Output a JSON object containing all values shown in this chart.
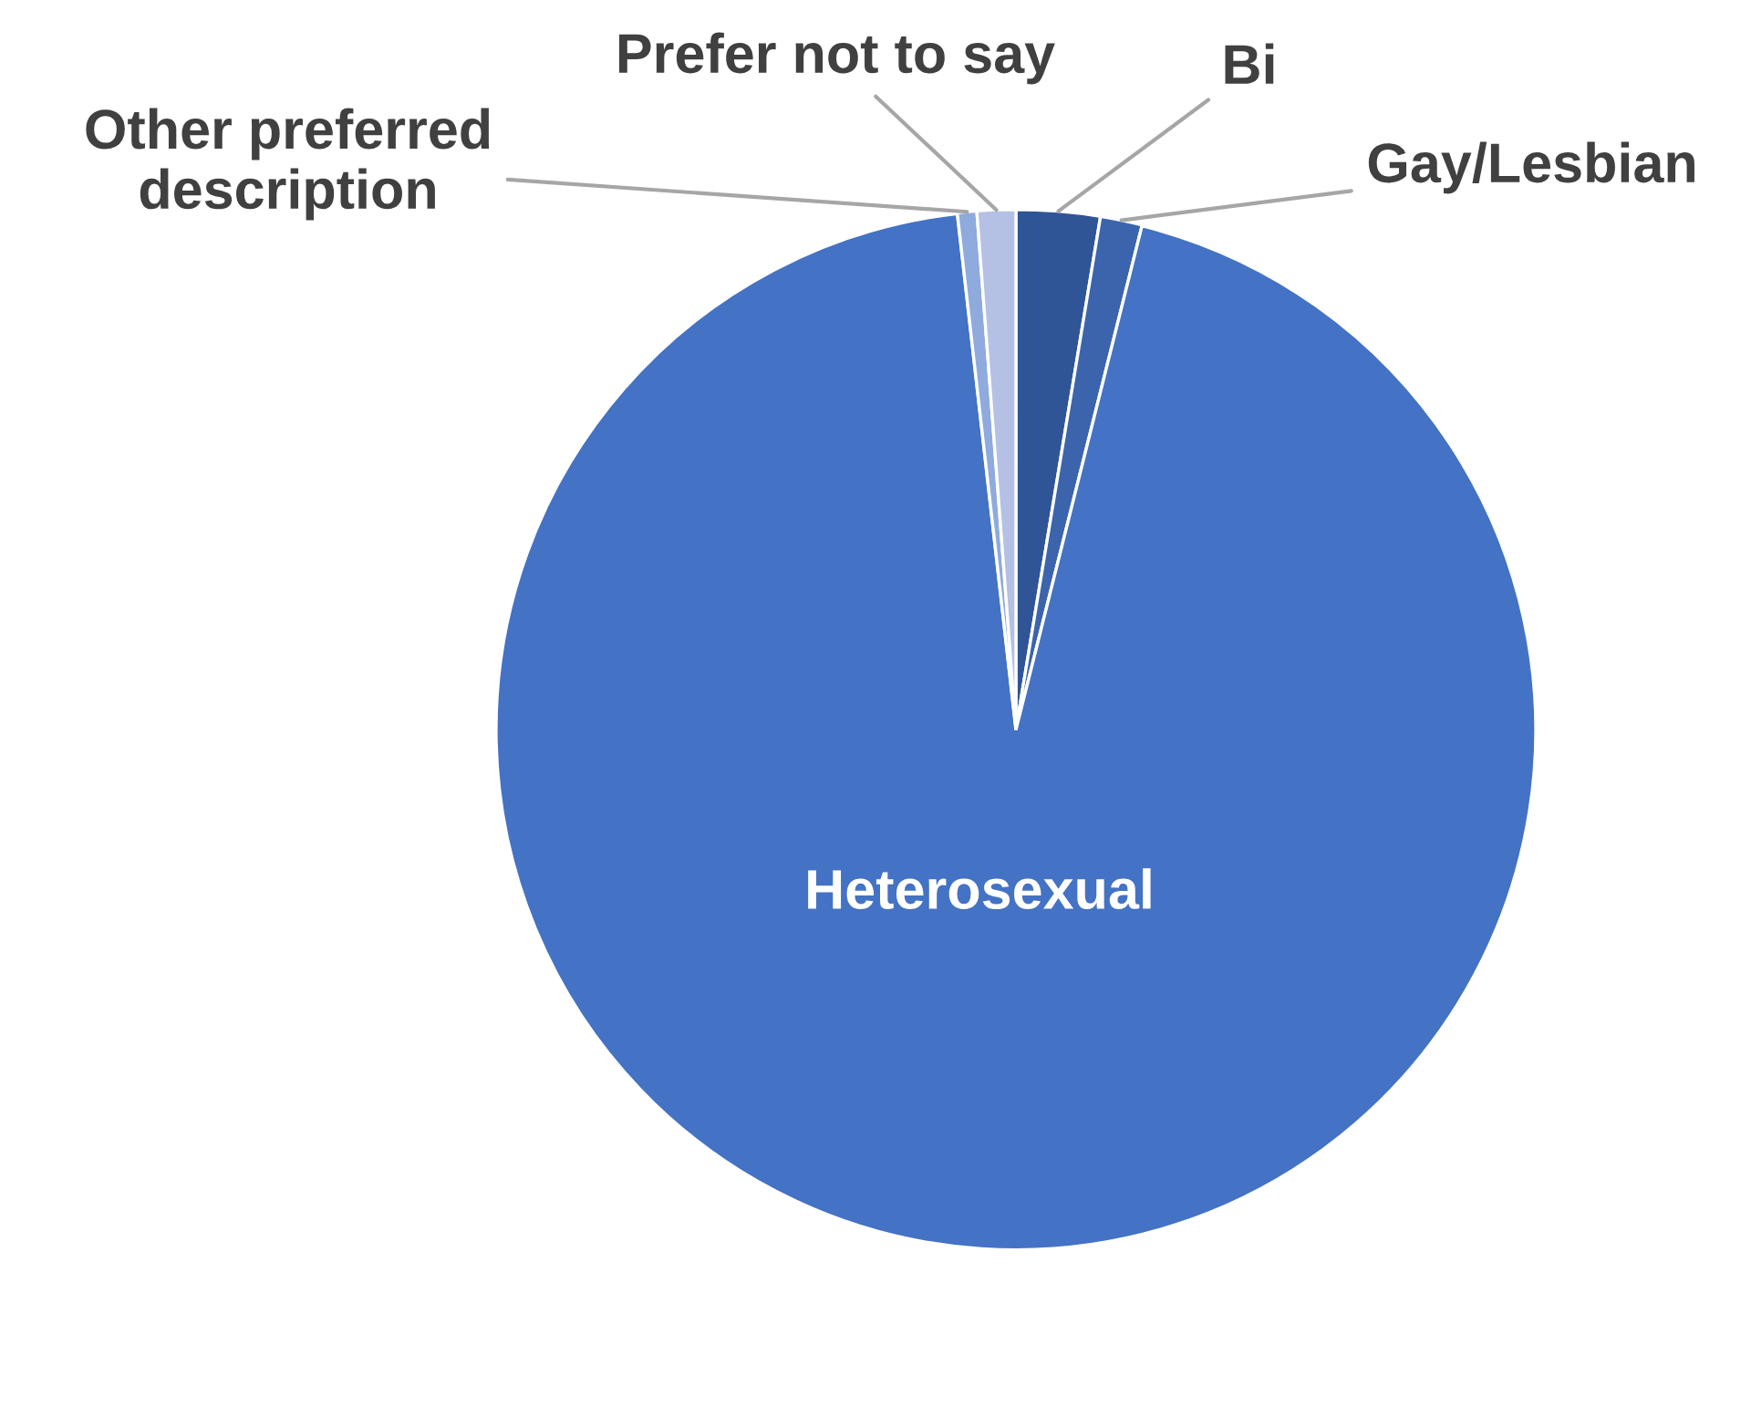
{
  "chart_data": {
    "type": "pie",
    "categories": [
      "Bi",
      "Gay/Lesbian",
      "Heterosexual",
      "Other preferred description",
      "Prefer not to say"
    ],
    "values": [
      2.6,
      1.3,
      94.3,
      0.6,
      1.2
    ],
    "colors": [
      "#2f5597",
      "#3b64ad",
      "#4472c4",
      "#8faadc",
      "#b4c0e4"
    ]
  }
}
